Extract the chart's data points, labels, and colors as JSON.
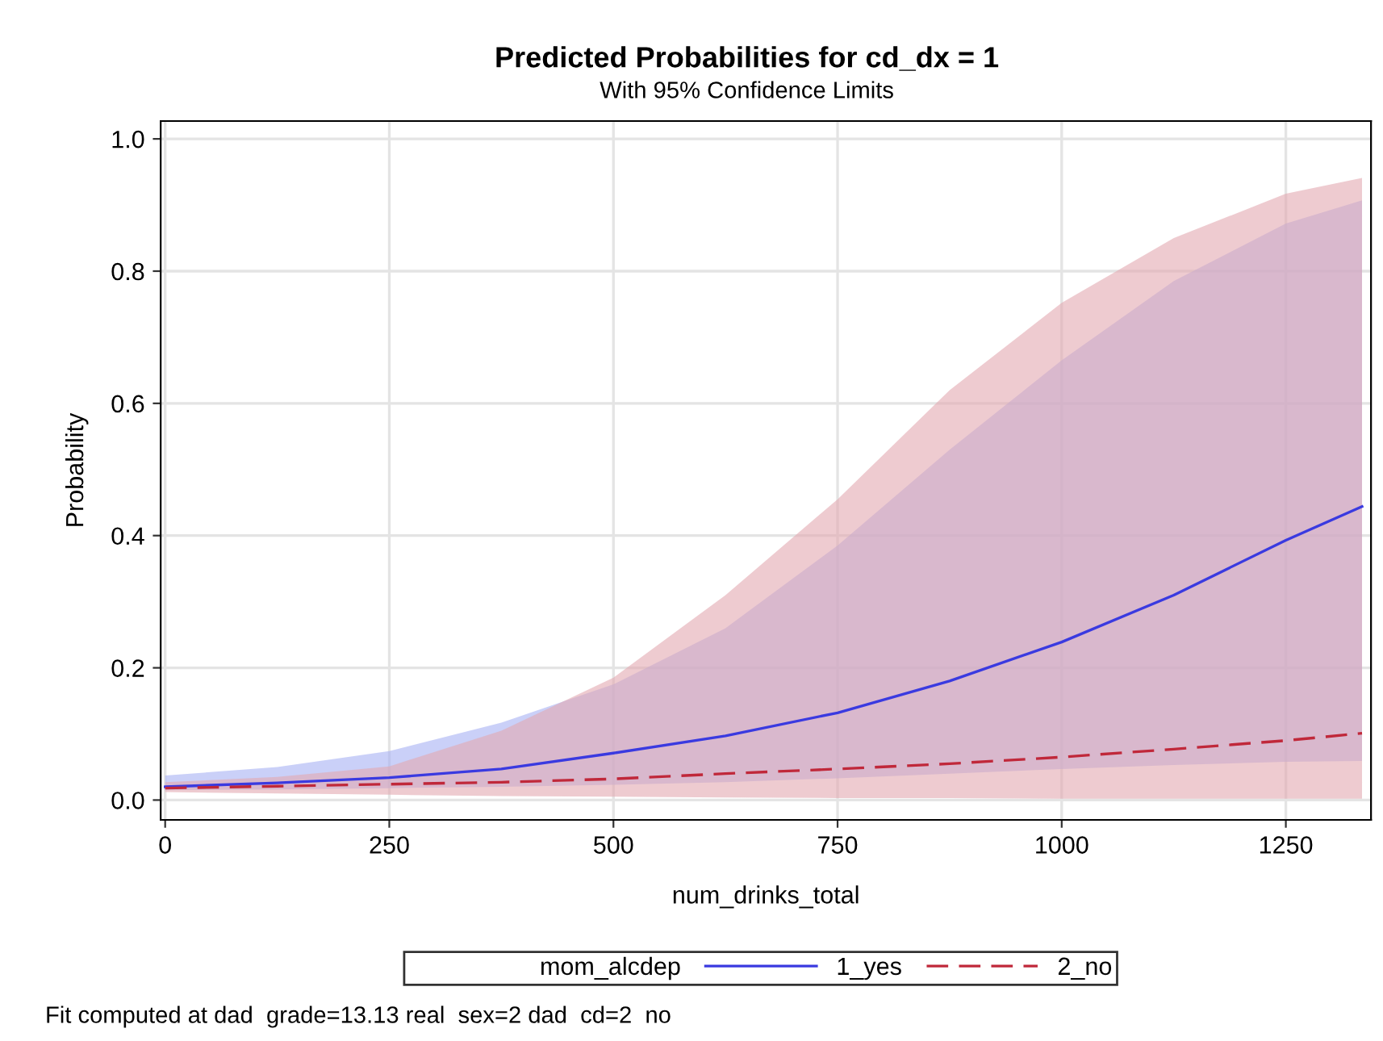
{
  "chart_data": {
    "type": "line",
    "title": "Predicted Probabilities for cd_dx = 1",
    "subtitle": "With 95% Confidence Limits",
    "xlabel": "num_drinks_total",
    "ylabel": "Probability",
    "legend_title": "mom_alcdep",
    "x": [
      0,
      125,
      250,
      375,
      500,
      625,
      750,
      875,
      1000,
      1125,
      1250,
      1335
    ],
    "series": [
      {
        "name": "1_yes",
        "color": "#3a3ae0",
        "line_style": "solid",
        "values": [
          0.02,
          0.026,
          0.034,
          0.047,
          0.071,
          0.097,
          0.132,
          0.18,
          0.239,
          0.31,
          0.393,
          0.444
        ],
        "lower": [
          0.015,
          0.016,
          0.018,
          0.02,
          0.023,
          0.027,
          0.033,
          0.04,
          0.047,
          0.053,
          0.058,
          0.059
        ],
        "upper": [
          0.037,
          0.05,
          0.074,
          0.117,
          0.175,
          0.26,
          0.385,
          0.53,
          0.665,
          0.785,
          0.872,
          0.907
        ]
      },
      {
        "name": "2_no",
        "color": "#c0283a",
        "line_style": "dashed",
        "values": [
          0.018,
          0.021,
          0.024,
          0.027,
          0.032,
          0.04,
          0.047,
          0.055,
          0.065,
          0.077,
          0.09,
          0.101
        ],
        "lower": [
          0.012,
          0.01,
          0.008,
          0.006,
          0.005,
          0.004,
          0.003,
          0.003,
          0.002,
          0.002,
          0.002,
          0.002
        ],
        "upper": [
          0.027,
          0.035,
          0.051,
          0.105,
          0.185,
          0.31,
          0.455,
          0.62,
          0.752,
          0.85,
          0.917,
          0.941
        ]
      }
    ],
    "xlim": [
      -5,
      1345
    ],
    "ylim": [
      -0.03,
      1.027
    ],
    "xticks": [
      0,
      250,
      500,
      750,
      1000,
      1250
    ],
    "yticks": [
      {
        "value": 0,
        "label": "0.0"
      },
      {
        "value": 0.2,
        "label": "0.2"
      },
      {
        "value": 0.4,
        "label": "0.4"
      },
      {
        "value": 0.6,
        "label": "0.6"
      },
      {
        "value": 0.8,
        "label": "0.8"
      },
      {
        "value": 1,
        "label": "1.0"
      }
    ],
    "grid": true,
    "legend": "bottom",
    "marker": "none",
    "annotations": [
      "Fit computed at dad  grade=13.13 real  sex=2 dad  cd=2  no"
    ]
  }
}
